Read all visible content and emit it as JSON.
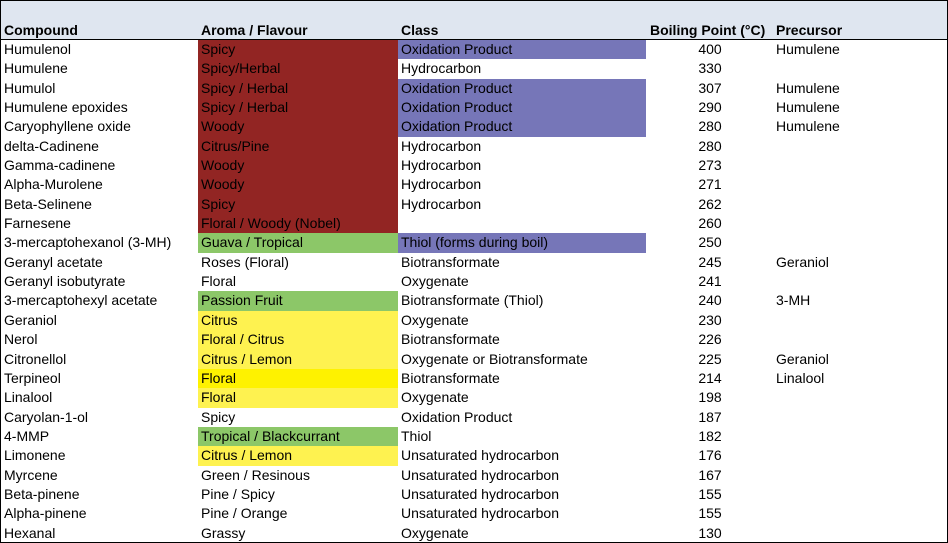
{
  "colors": {
    "red": "#922523",
    "purple": "#7676b8",
    "green": "#8cc768",
    "yellow": "#fef250",
    "bright_yellow": "#fef200",
    "header_bg": "#dfe6f0"
  },
  "headers": [
    "Compound",
    "Aroma / Flavour",
    "Class",
    "Boiling Point (°C)",
    "Precursor"
  ],
  "rows": [
    {
      "compound": "Humulenol",
      "aroma": "Spicy",
      "aroma_fill": "red",
      "class": "Oxidation Product",
      "class_fill": "purple",
      "bp": "400",
      "precursor": "Humulene"
    },
    {
      "compound": "Humulene",
      "aroma": "Spicy/Herbal",
      "aroma_fill": "red",
      "class": "Hydrocarbon",
      "class_fill": "",
      "bp": "330",
      "precursor": ""
    },
    {
      "compound": "Humulol",
      "aroma": "Spicy / Herbal",
      "aroma_fill": "red",
      "class": "Oxidation Product",
      "class_fill": "purple",
      "bp": "307",
      "precursor": "Humulene"
    },
    {
      "compound": "Humulene epoxides",
      "aroma": "Spicy / Herbal",
      "aroma_fill": "red",
      "class": "Oxidation Product",
      "class_fill": "purple",
      "bp": "290",
      "precursor": "Humulene"
    },
    {
      "compound": "Caryophyllene oxide",
      "aroma": "Woody",
      "aroma_fill": "red",
      "class": "Oxidation Product",
      "class_fill": "purple",
      "bp": "280",
      "precursor": "Humulene"
    },
    {
      "compound": "delta-Cadinene",
      "aroma": "Citrus/Pine",
      "aroma_fill": "red",
      "class": "Hydrocarbon",
      "class_fill": "",
      "bp": "280",
      "precursor": ""
    },
    {
      "compound": "Gamma-cadinene",
      "aroma": "Woody",
      "aroma_fill": "red",
      "class": "Hydrocarbon",
      "class_fill": "",
      "bp": "273",
      "precursor": ""
    },
    {
      "compound": "Alpha-Murolene",
      "aroma": "Woody",
      "aroma_fill": "red",
      "class": "Hydrocarbon",
      "class_fill": "",
      "bp": "271",
      "precursor": ""
    },
    {
      "compound": "Beta-Selinene",
      "aroma": "Spicy",
      "aroma_fill": "red",
      "class": "Hydrocarbon",
      "class_fill": "",
      "bp": "262",
      "precursor": ""
    },
    {
      "compound": "Farnesene",
      "aroma": "Floral / Woody (Nobel)",
      "aroma_fill": "red",
      "class": "",
      "class_fill": "",
      "bp": "260",
      "precursor": ""
    },
    {
      "compound": "3-mercaptohexanol (3-MH)",
      "aroma": "Guava / Tropical",
      "aroma_fill": "green",
      "class": "Thiol (forms during boil)",
      "class_fill": "purple",
      "bp": "250",
      "precursor": ""
    },
    {
      "compound": "Geranyl acetate",
      "aroma": "Roses (Floral)",
      "aroma_fill": "",
      "class": "Biotransformate",
      "class_fill": "",
      "bp": "245",
      "precursor": "Geraniol"
    },
    {
      "compound": "Geranyl isobutyrate",
      "aroma": "Floral",
      "aroma_fill": "",
      "class": "Oxygenate",
      "class_fill": "",
      "bp": "241",
      "precursor": ""
    },
    {
      "compound": "3-mercaptohexyl acetate",
      "aroma": "Passion Fruit",
      "aroma_fill": "green",
      "class": "Biotransformate (Thiol)",
      "class_fill": "",
      "bp": "240",
      "precursor": "3-MH"
    },
    {
      "compound": "Geraniol",
      "aroma": "Citrus",
      "aroma_fill": "yellow",
      "class": "Oxygenate",
      "class_fill": "",
      "bp": "230",
      "precursor": ""
    },
    {
      "compound": "Nerol",
      "aroma": "Floral / Citrus",
      "aroma_fill": "yellow",
      "class": "Biotransformate",
      "class_fill": "",
      "bp": "226",
      "precursor": ""
    },
    {
      "compound": "Citronellol",
      "aroma": "Citrus / Lemon",
      "aroma_fill": "yellow",
      "class": "Oxygenate or Biotransformate",
      "class_fill": "",
      "bp": "225",
      "precursor": "Geraniol"
    },
    {
      "compound": "Terpineol",
      "aroma": "Floral",
      "aroma_fill": "bright_yellow",
      "class": "Biotransformate",
      "class_fill": "",
      "bp": "214",
      "precursor": "Linalool"
    },
    {
      "compound": "Linalool",
      "aroma": "Floral",
      "aroma_fill": "yellow",
      "class": "Oxygenate",
      "class_fill": "",
      "bp": "198",
      "precursor": ""
    },
    {
      "compound": "Caryolan-1-ol",
      "aroma": "Spicy",
      "aroma_fill": "",
      "class": "Oxidation Product",
      "class_fill": "",
      "bp": "187",
      "precursor": ""
    },
    {
      "compound": "4-MMP",
      "aroma": "Tropical / Blackcurrant",
      "aroma_fill": "green",
      "class": "Thiol",
      "class_fill": "",
      "bp": "182",
      "precursor": ""
    },
    {
      "compound": "Limonene",
      "aroma": "Citrus / Lemon",
      "aroma_fill": "yellow",
      "class": "Unsaturated hydrocarbon",
      "class_fill": "",
      "bp": "176",
      "precursor": ""
    },
    {
      "compound": "Myrcene",
      "aroma": "Green / Resinous",
      "aroma_fill": "",
      "class": "Unsaturated hydrocarbon",
      "class_fill": "",
      "bp": "167",
      "precursor": ""
    },
    {
      "compound": "Beta-pinene",
      "aroma": "Pine / Spicy",
      "aroma_fill": "",
      "class": "Unsaturated hydrocarbon",
      "class_fill": "",
      "bp": "155",
      "precursor": ""
    },
    {
      "compound": "Alpha-pinene",
      "aroma": "Pine / Orange",
      "aroma_fill": "",
      "class": "Unsaturated hydrocarbon",
      "class_fill": "",
      "bp": "155",
      "precursor": ""
    },
    {
      "compound": "Hexanal",
      "aroma": "Grassy",
      "aroma_fill": "",
      "class": "Oxygenate",
      "class_fill": "",
      "bp": "130",
      "precursor": ""
    }
  ]
}
